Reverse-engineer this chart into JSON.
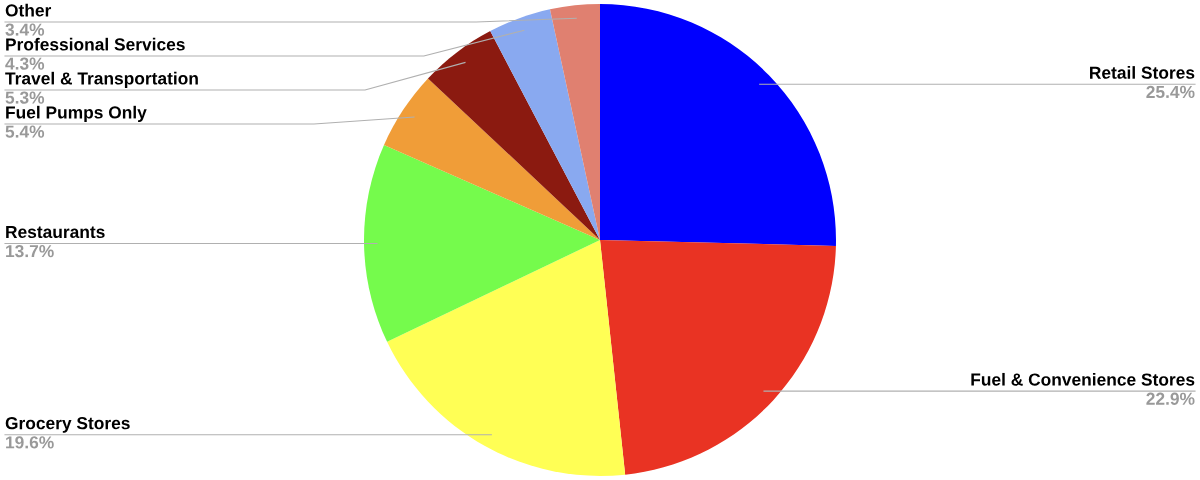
{
  "chart_data": {
    "type": "pie",
    "categories": [
      "Retail Stores",
      "Fuel & Convenience Stores",
      "Grocery Stores",
      "Restaurants",
      "Fuel Pumps Only",
      "Travel & Transportation",
      "Professional Services",
      "Other"
    ],
    "values": [
      25.4,
      22.9,
      19.6,
      13.7,
      5.4,
      5.3,
      4.3,
      3.4
    ],
    "colors": [
      "#0000ff",
      "#e93323",
      "#ffff55",
      "#75fb4c",
      "#f09d38",
      "#8b1a10",
      "#89a9f0",
      "#e08070"
    ],
    "value_labels": [
      "25.4%",
      "22.9%",
      "19.6%",
      "13.7%",
      "5.4%",
      "5.3%",
      "4.3%",
      "3.4%"
    ],
    "legend": false
  }
}
